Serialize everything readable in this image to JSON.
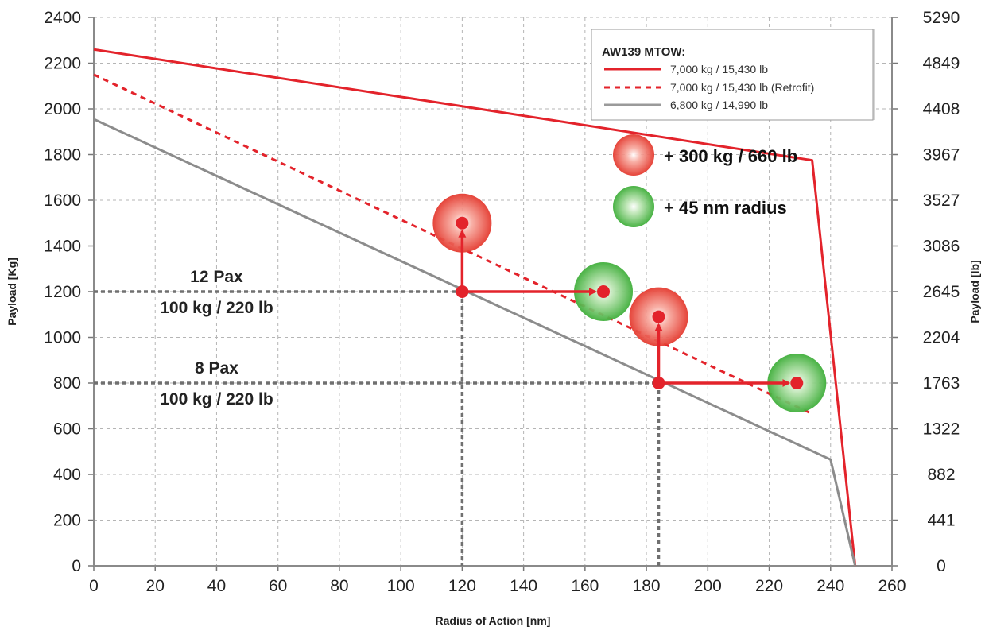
{
  "chart_data": {
    "type": "line",
    "title": "",
    "xlabel": "Radius of Action [nm]",
    "ylabel": "Payload [Kg]",
    "ylabel_right": "Payload [lb]",
    "xlim": [
      0,
      260
    ],
    "ylim": [
      0,
      2400
    ],
    "x_ticks": [
      "0",
      "20",
      "40",
      "60",
      "80",
      "100",
      "120",
      "140",
      "160",
      "180",
      "200",
      "220",
      "240",
      "260"
    ],
    "y_ticks": [
      "0",
      "200",
      "400",
      "600",
      "800",
      "1000",
      "1200",
      "1400",
      "1600",
      "1800",
      "2000",
      "2200",
      "2400"
    ],
    "y_ticks_right": [
      "0",
      "441",
      "882",
      "1322",
      "1763",
      "2204",
      "2645",
      "3086",
      "3527",
      "3967",
      "4408",
      "4849",
      "5290"
    ],
    "grid": true,
    "legend": {
      "title": "AW139 MTOW:",
      "placement": "top-right",
      "entries": [
        "7,000 kg / 15,430 lb",
        "7,000 kg / 15,430 lb (Retrofit)",
        "6,800 kg / 14,990 lb"
      ]
    },
    "series": [
      {
        "name": "7,000 kg / 15,430 lb",
        "color": "#e3232b",
        "style": "solid",
        "points": [
          [
            0,
            2260
          ],
          [
            234,
            1775
          ],
          [
            248,
            0
          ]
        ]
      },
      {
        "name": "7,000 kg / 15,430 lb (Retrofit)",
        "color": "#e3232b",
        "style": "dashed",
        "points": [
          [
            0,
            2150
          ],
          [
            234,
            665
          ]
        ]
      },
      {
        "name": "6,800 kg / 14,990 lb",
        "color": "#8c8c8c",
        "style": "solid",
        "points": [
          [
            0,
            1955
          ],
          [
            240,
            465
          ],
          [
            248,
            0
          ]
        ]
      }
    ],
    "reference_lines": [
      {
        "label": "12 Pax",
        "sublabel": "100 kg / 220 lb",
        "y": 1200,
        "x_end": 120
      },
      {
        "label": "8 Pax",
        "sublabel": "100 kg / 220 lb",
        "y": 800,
        "x_end": 184
      }
    ],
    "vertical_reference_lines": [
      {
        "x": 120,
        "y_top": 1200
      },
      {
        "x": 184,
        "y_top": 800
      }
    ],
    "markers": [
      {
        "type": "red",
        "x": 120,
        "y": 1500
      },
      {
        "type": "green",
        "x": 166,
        "y": 1200
      },
      {
        "type": "red",
        "x": 184,
        "y": 1090
      },
      {
        "type": "green",
        "x": 229,
        "y": 800
      }
    ],
    "dots": [
      {
        "x": 120,
        "y": 1200
      },
      {
        "x": 184,
        "y": 800
      }
    ],
    "arrows": [
      {
        "from": [
          120,
          1200
        ],
        "to": [
          120,
          1500
        ]
      },
      {
        "from": [
          120,
          1200
        ],
        "to": [
          166,
          1200
        ]
      },
      {
        "from": [
          184,
          800
        ],
        "to": [
          184,
          1090
        ]
      },
      {
        "from": [
          184,
          800
        ],
        "to": [
          229,
          800
        ]
      }
    ],
    "annotations": [
      {
        "type": "red",
        "text": "+ 300 kg / 660 lb"
      },
      {
        "type": "green",
        "text": "+ 45 nm radius"
      }
    ],
    "colors": {
      "red": "#e3232b",
      "gray": "#8c8c8c",
      "marker_red": "#ea4a3f",
      "marker_green": "#59b94e"
    }
  }
}
